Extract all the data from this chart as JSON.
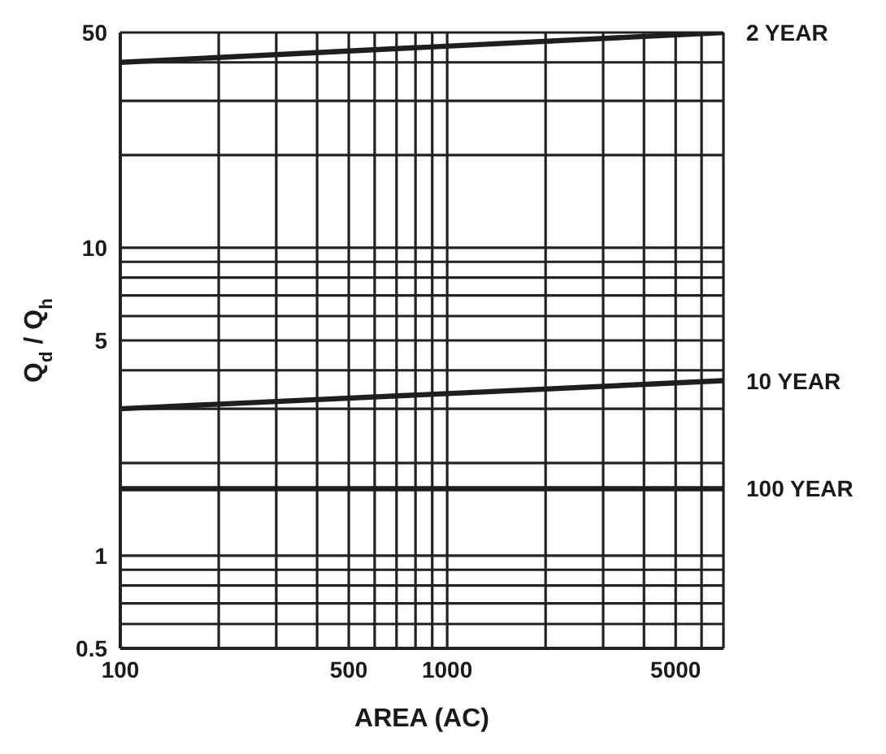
{
  "chart_data": {
    "type": "line",
    "xlabel": "AREA (AC)",
    "ylabel": "Q$_{d}$ / Q$_{h}$",
    "log": "xy",
    "grid": true,
    "legend": false,
    "marker": "none",
    "line_style": "solid",
    "xlim": [
      100,
      7000
    ],
    "ylim": [
      0.5,
      50
    ],
    "xticks": [
      100,
      {
        "value": 200,
        "label": null
      },
      {
        "value": 300,
        "label": null
      },
      {
        "value": 400,
        "label": null
      },
      500,
      {
        "value": 600,
        "label": null
      },
      {
        "value": 700,
        "label": null
      },
      {
        "value": 800,
        "label": null
      },
      {
        "value": 900,
        "label": null
      },
      1000,
      {
        "value": 2000,
        "label": null
      },
      {
        "value": 3000,
        "label": null
      },
      {
        "value": 4000,
        "label": null
      },
      5000,
      {
        "value": 6000,
        "label": null
      },
      {
        "value": 7000,
        "label": null
      }
    ],
    "yticks": [
      0.5,
      {
        "value": 0.6,
        "label": null
      },
      {
        "value": 0.7,
        "label": null
      },
      {
        "value": 0.8,
        "label": null
      },
      {
        "value": 0.9,
        "label": null
      },
      1,
      {
        "value": 2,
        "label": null
      },
      {
        "value": 3,
        "label": null
      },
      {
        "value": 4,
        "label": null
      },
      5,
      {
        "value": 6,
        "label": null
      },
      {
        "value": 7,
        "label": null
      },
      {
        "value": 8,
        "label": null
      },
      {
        "value": 9,
        "label": null
      },
      10,
      {
        "value": 20,
        "label": null
      },
      {
        "value": 30,
        "label": null
      },
      {
        "value": 40,
        "label": null
      },
      50
    ],
    "x": [
      100,
      7000
    ],
    "series": [
      {
        "name": "2 YEAR",
        "color": "#1e1e1e",
        "values": [
          40,
          50
        ]
      },
      {
        "name": "10 YEAR",
        "color": "#1e1e1e",
        "values": [
          3,
          3.7
        ]
      },
      {
        "name": "100 YEAR",
        "color": "#1e1e1e",
        "values": [
          1.65,
          1.65
        ]
      }
    ]
  }
}
